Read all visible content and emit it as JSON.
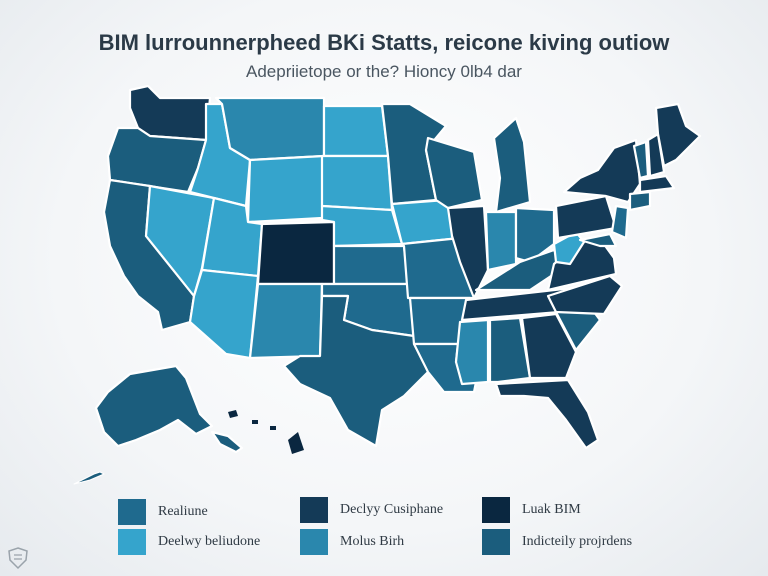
{
  "header": {
    "title": "BIM lurrounnerpheed BKi Statts, reicone kiving outiow",
    "subtitle": "Adepriietope or the? Hioncy 0lb4 dar"
  },
  "colors": {
    "c1": "#1f6a8e",
    "c2": "#35a4cc",
    "c3": "#143a57",
    "c4": "#0a2740",
    "c5": "#1b5d7d",
    "c6": "#2a87ad"
  },
  "legend": {
    "items": [
      {
        "label": "Realiune",
        "color": "#1f6a8e"
      },
      {
        "label": "Declyy Cusiphane",
        "color": "#143a57"
      },
      {
        "label": "Luak BIM",
        "color": "#0a2740"
      },
      {
        "label": "Deelwy beliudone",
        "color": "#35a4cc"
      },
      {
        "label": "Molus Birh",
        "color": "#2a87ad"
      },
      {
        "label": "Indicteily projrdens",
        "color": "#1b5d7d"
      }
    ]
  }
}
